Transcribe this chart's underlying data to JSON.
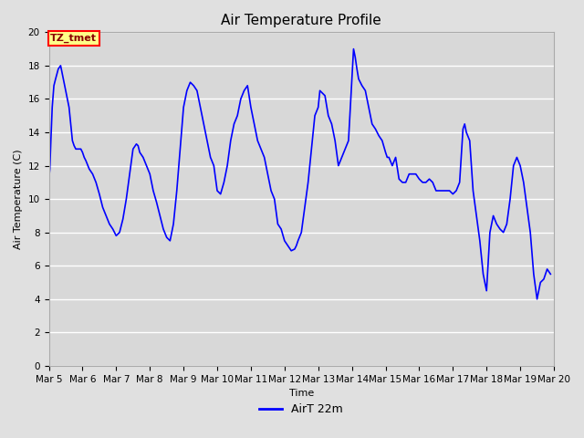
{
  "title": "Air Temperature Profile",
  "xlabel": "Time",
  "ylabel": "Air Temperature (C)",
  "xlim": [
    5,
    20
  ],
  "ylim": [
    0,
    20
  ],
  "yticks": [
    0,
    2,
    4,
    6,
    8,
    10,
    12,
    14,
    16,
    18,
    20
  ],
  "xtick_labels": [
    "Mar 5",
    "Mar 6",
    "Mar 7",
    "Mar 8",
    "Mar 9",
    "Mar 10",
    "Mar 11",
    "Mar 12",
    "Mar 13",
    "Mar 14",
    "Mar 15",
    "Mar 16",
    "Mar 17",
    "Mar 18",
    "Mar 19",
    "Mar 20"
  ],
  "xtick_positions": [
    5,
    6,
    7,
    8,
    9,
    10,
    11,
    12,
    13,
    14,
    15,
    16,
    17,
    18,
    19,
    20
  ],
  "line_color": "#0000FF",
  "line_width": 1.2,
  "legend_label": "AirT 22m",
  "tz_label": "TZ_tmet",
  "fig_bg_color": "#E0E0E0",
  "plot_bg_color": "#D8D8D8",
  "title_fontsize": 11,
  "axis_label_fontsize": 8,
  "tick_fontsize": 7.5,
  "annot_fontsize": 7.5,
  "x_data": [
    5.0,
    5.03,
    5.06,
    5.1,
    5.15,
    5.2,
    5.28,
    5.35,
    5.4,
    5.45,
    5.5,
    5.55,
    5.6,
    5.65,
    5.7,
    5.75,
    5.8,
    5.85,
    5.9,
    5.95,
    6.0,
    6.05,
    6.1,
    6.2,
    6.3,
    6.4,
    6.5,
    6.6,
    6.7,
    6.8,
    6.9,
    7.0,
    7.1,
    7.2,
    7.3,
    7.4,
    7.5,
    7.6,
    7.65,
    7.7,
    7.8,
    7.9,
    8.0,
    8.1,
    8.2,
    8.3,
    8.4,
    8.5,
    8.6,
    8.7,
    8.8,
    8.9,
    9.0,
    9.1,
    9.2,
    9.3,
    9.4,
    9.5,
    9.6,
    9.7,
    9.8,
    9.9,
    10.0,
    10.1,
    10.2,
    10.3,
    10.4,
    10.5,
    10.6,
    10.7,
    10.8,
    10.9,
    11.0,
    11.1,
    11.2,
    11.3,
    11.4,
    11.5,
    11.6,
    11.7,
    11.8,
    11.9,
    12.0,
    12.1,
    12.2,
    12.3,
    12.35,
    12.4,
    12.5,
    12.6,
    12.7,
    12.8,
    12.9,
    13.0,
    13.05,
    13.1,
    13.2,
    13.3,
    13.4,
    13.5,
    13.6,
    13.7,
    13.8,
    13.9,
    14.0,
    14.05,
    14.1,
    14.15,
    14.2,
    14.3,
    14.4,
    14.5,
    14.6,
    14.7,
    14.8,
    14.9,
    15.0,
    15.05,
    15.1,
    15.2,
    15.3,
    15.4,
    15.5,
    15.6,
    15.7,
    15.8,
    15.9,
    16.0,
    16.1,
    16.2,
    16.3,
    16.4,
    16.5,
    16.6,
    16.7,
    16.8,
    16.9,
    17.0,
    17.1,
    17.2,
    17.3,
    17.35,
    17.4,
    17.5,
    17.6,
    17.7,
    17.8,
    17.9,
    18.0,
    18.1,
    18.2,
    18.3,
    18.4,
    18.5,
    18.6,
    18.7,
    18.8,
    18.9,
    19.0,
    19.1,
    19.2,
    19.3,
    19.4,
    19.5,
    19.6,
    19.7,
    19.8,
    19.9
  ],
  "y_data": [
    11.2,
    11.8,
    13.5,
    15.5,
    16.8,
    17.2,
    17.8,
    18.0,
    17.5,
    17.0,
    16.5,
    16.0,
    15.5,
    14.5,
    13.5,
    13.2,
    13.0,
    13.0,
    13.0,
    13.0,
    12.8,
    12.5,
    12.3,
    11.8,
    11.5,
    11.0,
    10.3,
    9.5,
    9.0,
    8.5,
    8.2,
    7.8,
    8.0,
    8.8,
    10.0,
    11.5,
    13.0,
    13.3,
    13.2,
    12.8,
    12.5,
    12.0,
    11.5,
    10.5,
    9.8,
    9.0,
    8.2,
    7.7,
    7.5,
    8.5,
    10.5,
    13.0,
    15.5,
    16.5,
    17.0,
    16.8,
    16.5,
    15.5,
    14.5,
    13.5,
    12.5,
    12.0,
    10.5,
    10.3,
    11.0,
    12.0,
    13.5,
    14.5,
    15.0,
    16.0,
    16.5,
    16.8,
    15.5,
    14.5,
    13.5,
    13.0,
    12.5,
    11.5,
    10.5,
    10.0,
    8.5,
    8.2,
    7.5,
    7.2,
    6.9,
    7.0,
    7.2,
    7.5,
    8.0,
    9.5,
    11.0,
    13.0,
    15.0,
    15.5,
    16.5,
    16.4,
    16.2,
    15.0,
    14.5,
    13.5,
    12.0,
    12.5,
    13.0,
    13.5,
    17.2,
    19.0,
    18.5,
    17.8,
    17.2,
    16.8,
    16.5,
    15.5,
    14.5,
    14.2,
    13.8,
    13.5,
    12.8,
    12.5,
    12.5,
    12.0,
    12.5,
    11.2,
    11.0,
    11.0,
    11.5,
    11.5,
    11.5,
    11.2,
    11.0,
    11.0,
    11.2,
    11.0,
    10.5,
    10.5,
    10.5,
    10.5,
    10.5,
    10.3,
    10.5,
    11.0,
    14.2,
    14.5,
    14.0,
    13.5,
    10.5,
    9.0,
    7.5,
    5.5,
    4.5,
    8.0,
    9.0,
    8.5,
    8.2,
    8.0,
    8.5,
    10.0,
    12.0,
    12.5,
    12.0,
    11.0,
    9.5,
    8.0,
    5.5,
    4.0,
    5.0,
    5.2,
    5.8,
    5.5
  ]
}
